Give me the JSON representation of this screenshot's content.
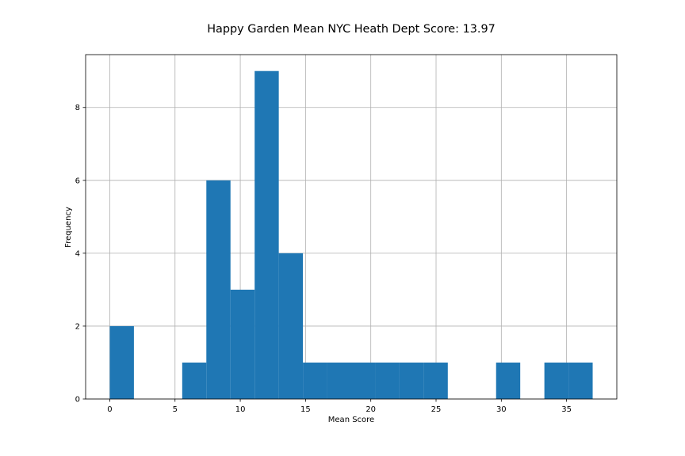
{
  "chart_data": {
    "type": "bar",
    "subtype": "histogram",
    "title": "Happy Garden Mean NYC Heath Dept Score: 13.97",
    "xlabel": "Mean Score",
    "ylabel": "Frequency",
    "xlim": [
      -1.85,
      38.85
    ],
    "ylim": [
      0,
      9.45
    ],
    "xticks": [
      0,
      5,
      10,
      15,
      20,
      25,
      30,
      35
    ],
    "yticks": [
      0,
      2,
      4,
      6,
      8
    ],
    "grid": true,
    "bar_color": "#1f77b4",
    "bins": [
      {
        "x0": 0.0,
        "x1": 1.85,
        "count": 2
      },
      {
        "x0": 1.85,
        "x1": 3.7,
        "count": 0
      },
      {
        "x0": 3.7,
        "x1": 5.55,
        "count": 0
      },
      {
        "x0": 5.55,
        "x1": 7.4,
        "count": 1
      },
      {
        "x0": 7.4,
        "x1": 9.25,
        "count": 6
      },
      {
        "x0": 9.25,
        "x1": 11.1,
        "count": 3
      },
      {
        "x0": 11.1,
        "x1": 12.95,
        "count": 9
      },
      {
        "x0": 12.95,
        "x1": 14.8,
        "count": 4
      },
      {
        "x0": 14.8,
        "x1": 16.65,
        "count": 1
      },
      {
        "x0": 16.65,
        "x1": 18.5,
        "count": 1
      },
      {
        "x0": 18.5,
        "x1": 20.35,
        "count": 1
      },
      {
        "x0": 20.35,
        "x1": 22.2,
        "count": 1
      },
      {
        "x0": 22.2,
        "x1": 24.05,
        "count": 1
      },
      {
        "x0": 24.05,
        "x1": 25.9,
        "count": 1
      },
      {
        "x0": 25.9,
        "x1": 27.75,
        "count": 0
      },
      {
        "x0": 27.75,
        "x1": 29.6,
        "count": 0
      },
      {
        "x0": 29.6,
        "x1": 31.45,
        "count": 1
      },
      {
        "x0": 31.45,
        "x1": 33.3,
        "count": 0
      },
      {
        "x0": 33.3,
        "x1": 35.15,
        "count": 1
      },
      {
        "x0": 35.15,
        "x1": 37.0,
        "count": 1
      }
    ]
  }
}
